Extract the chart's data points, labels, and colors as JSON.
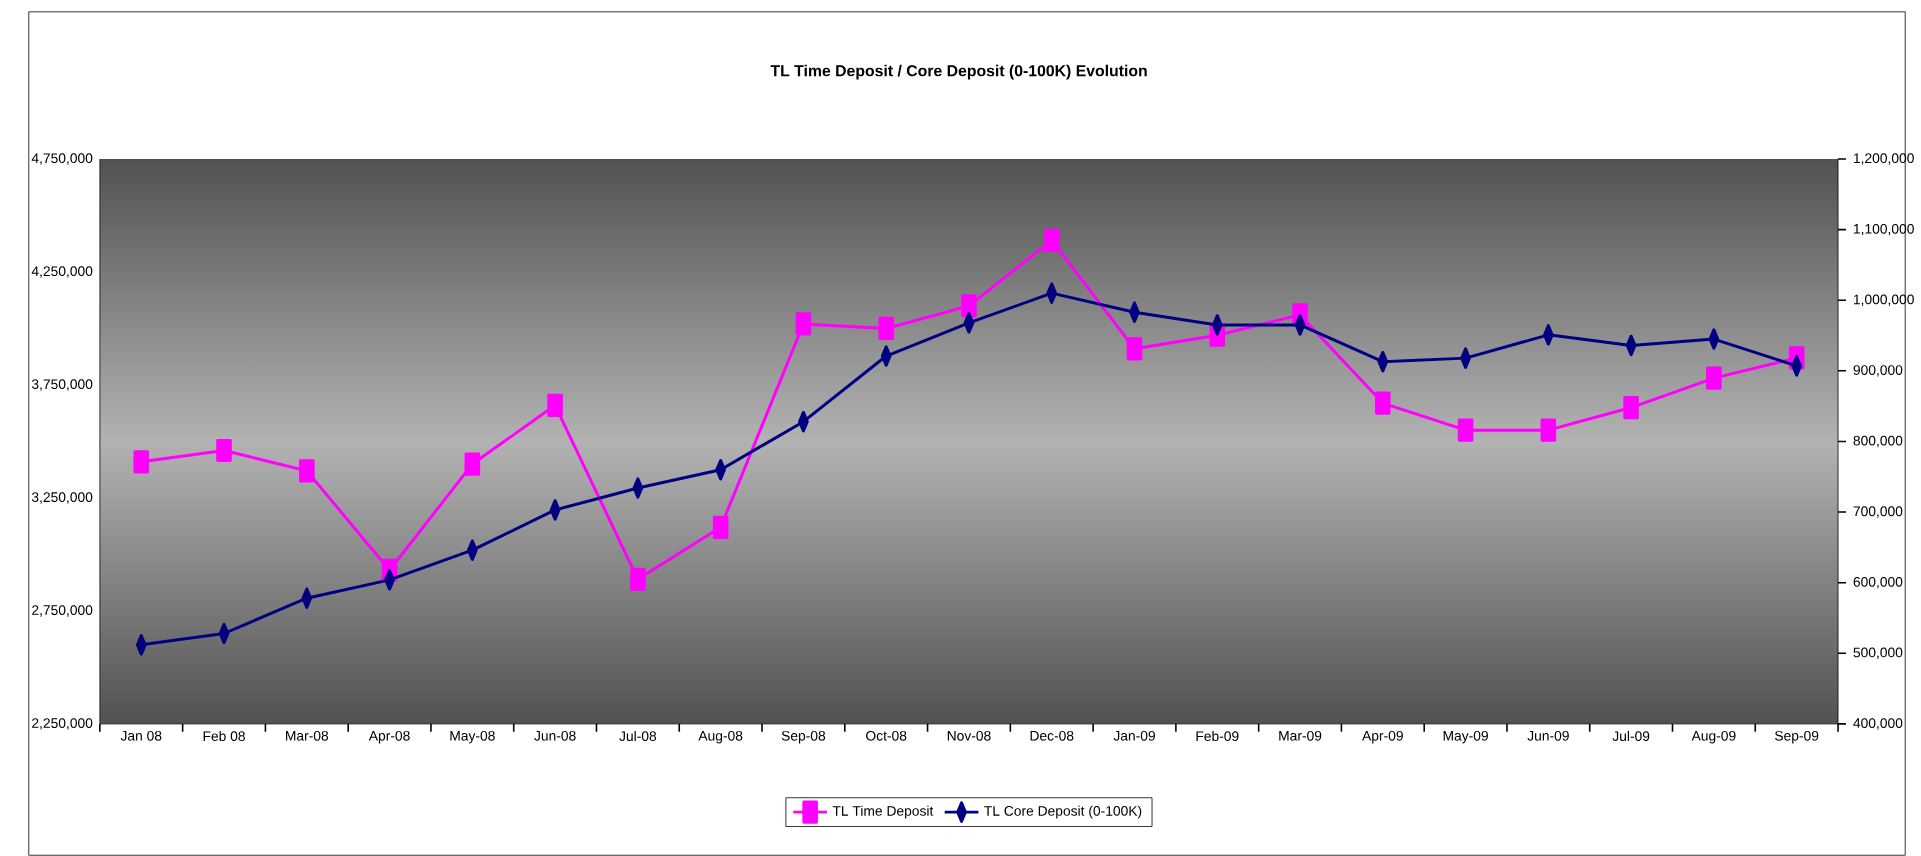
{
  "chart_data": {
    "type": "line",
    "title": "TL Time Deposit / Core Deposit (0-100K) Evolution",
    "categories": [
      "Jan 08",
      "Feb 08",
      "Mar-08",
      "Apr-08",
      "May-08",
      "Jun-08",
      "Jul-08",
      "Aug-08",
      "Sep-08",
      "Oct-08",
      "Nov-08",
      "Dec-08",
      "Jan-09",
      "Feb-09",
      "Mar-09",
      "Apr-09",
      "May-09",
      "Jun-09",
      "Jul-09",
      "Aug-09",
      "Sep-09"
    ],
    "series": [
      {
        "name": "TL Time Deposit",
        "color": "#ff00ff",
        "marker": "square",
        "values": [
          3410000,
          3460000,
          3370000,
          2930000,
          3400000,
          3660000,
          2890000,
          3120000,
          4020000,
          4000000,
          4100000,
          4390000,
          3910000,
          3970000,
          4060000,
          3670000,
          3550000,
          3550000,
          3650000,
          3780000,
          3870000
        ]
      },
      {
        "name": "TL Core Deposit (0-100K)",
        "color": "#000080",
        "marker": "diamond",
        "axis": "y2",
        "values": [
          512000,
          528000,
          578000,
          604000,
          646000,
          703000,
          734000,
          760000,
          828000,
          921000,
          968000,
          1010000,
          983000,
          965000,
          965000,
          913000,
          918000,
          951000,
          936000,
          945000,
          907000
        ]
      }
    ],
    "ylim": [
      2250000,
      4750000
    ],
    "yticks": [
      {
        "value": 2250000,
        "label": "2,250,000"
      },
      {
        "value": 2750000,
        "label": "2,750,000"
      },
      {
        "value": 3250000,
        "label": "3,250,000"
      },
      {
        "value": 3750000,
        "label": "3,750,000"
      },
      {
        "value": 4250000,
        "label": "4,250,000"
      },
      {
        "value": 4750000,
        "label": "4,750,000"
      }
    ],
    "y2lim": [
      400000,
      1200000
    ],
    "y2ticks": [
      {
        "value": 400000,
        "label": "400,000"
      },
      {
        "value": 500000,
        "label": "500,000"
      },
      {
        "value": 600000,
        "label": "600,000"
      },
      {
        "value": 700000,
        "label": "700,000"
      },
      {
        "value": 800000,
        "label": "800,000"
      },
      {
        "value": 900000,
        "label": "900,000"
      },
      {
        "value": 1000000,
        "label": "1,000,000"
      },
      {
        "value": 1100000,
        "label": "1,100,000"
      },
      {
        "value": 1200000,
        "label": "1,200,000"
      }
    ],
    "grid": false,
    "legend": "bottom",
    "line_style": "solid"
  }
}
